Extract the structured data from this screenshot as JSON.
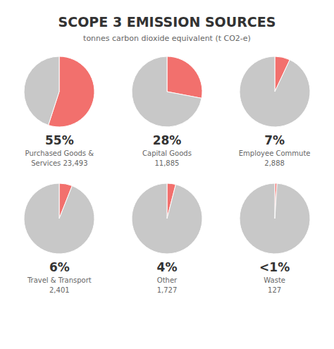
{
  "title": "SCOPE 3  EMISSION SOURCES",
  "subtitle": "tonnes carbon dioxide equivalent (t CO2-e)",
  "chart_data": [
    {
      "type": "pie",
      "title": "Purchased Goods &\nServices 23,493",
      "values": [
        55,
        45
      ],
      "value_labels": [
        "55%",
        null
      ],
      "colors": [
        "#f2706d",
        "#c8c8c8"
      ]
    },
    {
      "type": "pie",
      "title": "Capital Goods\n11,885",
      "values": [
        28,
        72
      ],
      "value_labels": [
        "28%",
        null
      ],
      "colors": [
        "#f2706d",
        "#c8c8c8"
      ]
    },
    {
      "type": "pie",
      "title": "Employee Commute\n2,888",
      "values": [
        7,
        93
      ],
      "value_labels": [
        "7%",
        null
      ],
      "colors": [
        "#f2706d",
        "#c8c8c8"
      ]
    },
    {
      "type": "pie",
      "title": "Travel & Transport\n2,401",
      "values": [
        6,
        94
      ],
      "value_labels": [
        "6%",
        null
      ],
      "colors": [
        "#f2706d",
        "#c8c8c8"
      ]
    },
    {
      "type": "pie",
      "title": "Other\n1,727",
      "values": [
        4,
        96
      ],
      "value_labels": [
        "4%",
        null
      ],
      "colors": [
        "#f2706d",
        "#c8c8c8"
      ]
    },
    {
      "type": "pie",
      "title": "Waste\n127",
      "values": [
        1,
        99
      ],
      "value_labels": [
        "<1%",
        null
      ],
      "colors": [
        "#f2706d",
        "#c8c8c8"
      ]
    }
  ]
}
